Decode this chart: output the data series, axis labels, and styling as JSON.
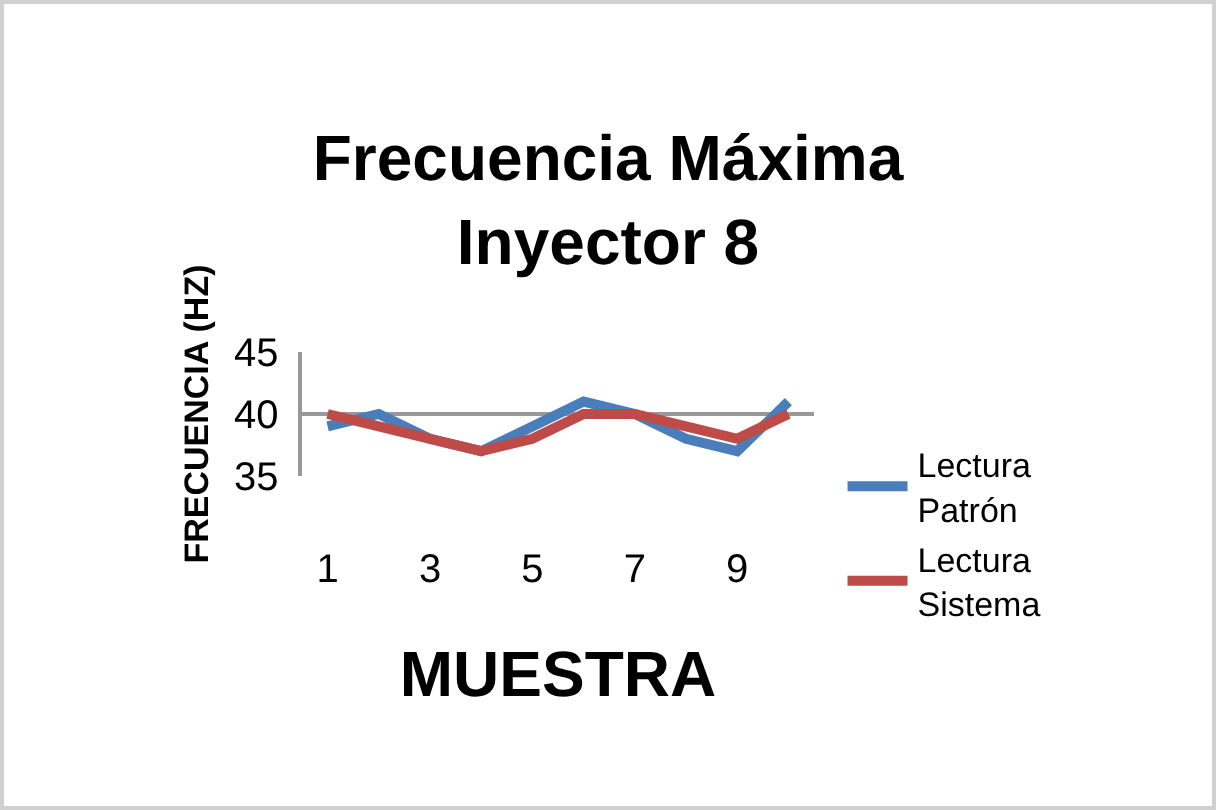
{
  "chart_data": {
    "type": "line",
    "title": "Frecuencia Máxima Inyector 8",
    "xlabel": "MUESTRA",
    "ylabel": "FRECUENCIA (HZ)",
    "categories": [
      "1",
      null,
      "3",
      null,
      "5",
      null,
      "7",
      null,
      "9",
      null
    ],
    "series": [
      {
        "name": "Lectura Patrón",
        "color": "#4a7ebb",
        "values": [
          39,
          40,
          38,
          37,
          39,
          41,
          40,
          38,
          37,
          41
        ]
      },
      {
        "name": "Lectura Sistema",
        "color": "#be4b48",
        "values": [
          40,
          39,
          38,
          37,
          38,
          40,
          40,
          39,
          38,
          40
        ]
      }
    ],
    "ylim": [
      35,
      45
    ],
    "yticks": [
      35,
      40,
      45
    ],
    "grid": "y",
    "legend": "right",
    "marker": "none",
    "line_style": "solid"
  }
}
